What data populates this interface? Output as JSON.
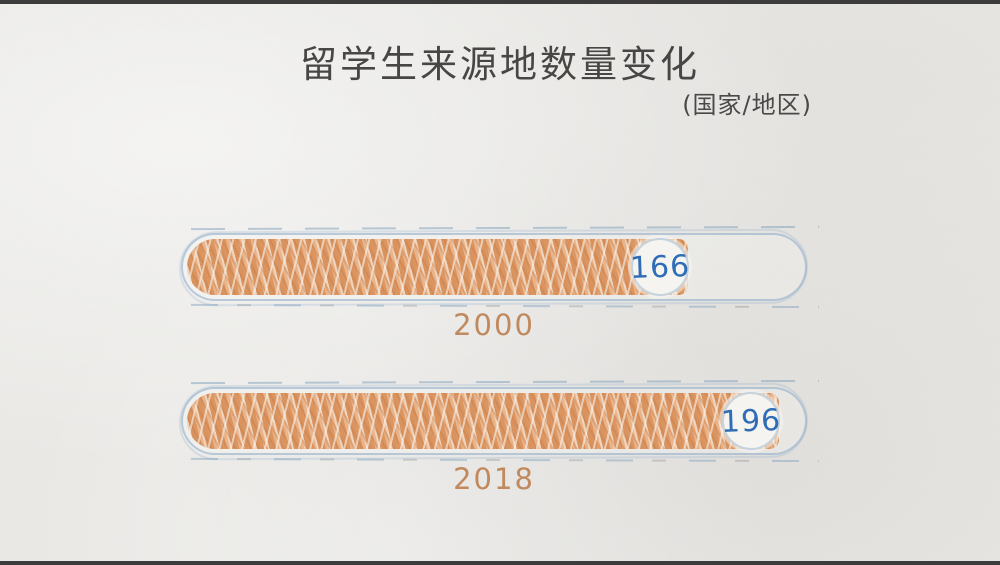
{
  "page": {
    "title": "留学生来源地数量变化",
    "subtitle": "(国家/地区)"
  },
  "chart_data": {
    "type": "bar",
    "orientation": "horizontal",
    "title": "留学生来源地数量变化",
    "subtitle": "(国家/地区)",
    "unit_note": "国家/地区",
    "categories": [
      "2000",
      "2018"
    ],
    "values": [
      166,
      196
    ],
    "xlim": [
      0,
      206
    ],
    "grid": false,
    "legend": false,
    "value_label_style": "blue number in white circle at bar end",
    "bar_style": "hand-drawn orange crosshatch on sketched rounded track",
    "colors": {
      "bar_fill": "#de9c6c",
      "bar_outline": "#93b7d6",
      "value_text": "#2f6db6",
      "category_text": "#c08a5e",
      "title_text": "#474645",
      "paper_background": "#ebeae7",
      "film_edge": "#3c3c3c"
    }
  }
}
